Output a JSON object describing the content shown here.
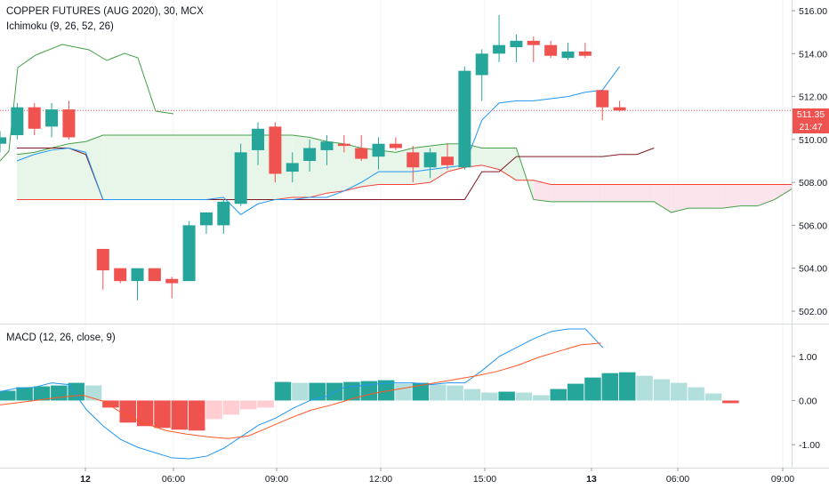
{
  "header": {
    "symbol_title": "COPPER FUTURES (AUG 2020), 30, MCX",
    "ichimoku_label": "Ichimoku (9, 26, 52, 26)",
    "macd_label": "MACD (12, 26, close, 9)"
  },
  "price_tag": {
    "price": "511.35",
    "countdown": "21:47"
  },
  "colors": {
    "up": "#26a69a",
    "down": "#ef5350",
    "conversion": "#2196f3",
    "base": "#801922",
    "lagging": "#43a047",
    "span_a": "#f44336",
    "cloud_bull": "#e8f5e9",
    "cloud_bear": "#fce4ec",
    "macd_line": "#2196f3",
    "signal_line": "#ff5722",
    "hist_up_strong": "#26a69a",
    "hist_up_weak": "#b2dfdb",
    "hist_down_strong": "#ef5350",
    "hist_down_weak": "#ffcdd2"
  },
  "chart_data": [
    {
      "type": "candlestick",
      "title": "COPPER FUTURES (AUG 2020), 30, MCX",
      "indicator": "Ichimoku (9, 26, 52, 26)",
      "ylim": [
        501.5,
        516.5
      ],
      "y_ticks": [
        "516.00",
        "514.00",
        "512.00",
        "510.00",
        "508.00",
        "506.00",
        "504.00",
        "502.00"
      ],
      "x_ticks": [
        "12",
        "06:00",
        "09:00",
        "12:00",
        "15:00",
        "13",
        "06:00",
        "09:00"
      ],
      "last_price": 511.35,
      "candles": [
        {
          "o": 509.8,
          "h": 510.4,
          "l": 509.4,
          "c": 510.1
        },
        {
          "o": 510.2,
          "h": 511.7,
          "l": 510.0,
          "c": 511.5
        },
        {
          "o": 511.5,
          "h": 511.7,
          "l": 510.2,
          "c": 510.5
        },
        {
          "o": 510.6,
          "h": 511.7,
          "l": 510.1,
          "c": 511.4
        },
        {
          "o": 511.4,
          "h": 511.8,
          "l": 510.0,
          "c": 510.1
        },
        {
          "o": 504.9,
          "h": 504.9,
          "l": 503.0,
          "c": 503.9
        },
        {
          "o": 504.0,
          "h": 504.0,
          "l": 503.3,
          "c": 503.4
        },
        {
          "o": 503.4,
          "h": 504.0,
          "l": 502.5,
          "c": 504.0
        },
        {
          "o": 504.0,
          "h": 504.0,
          "l": 503.4,
          "c": 503.4
        },
        {
          "o": 503.5,
          "h": 503.6,
          "l": 502.6,
          "c": 503.3
        },
        {
          "o": 503.4,
          "h": 506.2,
          "l": 503.4,
          "c": 506.0
        },
        {
          "o": 506.0,
          "h": 506.6,
          "l": 505.6,
          "c": 506.6
        },
        {
          "o": 506.0,
          "h": 507.2,
          "l": 505.6,
          "c": 507.1
        },
        {
          "o": 507.0,
          "h": 509.8,
          "l": 506.9,
          "c": 509.4
        },
        {
          "o": 509.5,
          "h": 510.8,
          "l": 508.8,
          "c": 510.5
        },
        {
          "o": 510.6,
          "h": 510.8,
          "l": 508.0,
          "c": 508.4
        },
        {
          "o": 508.5,
          "h": 509.4,
          "l": 508.0,
          "c": 508.9
        },
        {
          "o": 509.0,
          "h": 510.0,
          "l": 508.5,
          "c": 509.6
        },
        {
          "o": 509.5,
          "h": 510.2,
          "l": 508.8,
          "c": 509.9
        },
        {
          "o": 509.8,
          "h": 510.2,
          "l": 509.4,
          "c": 509.7
        },
        {
          "o": 509.6,
          "h": 510.2,
          "l": 509.0,
          "c": 509.1
        },
        {
          "o": 509.2,
          "h": 510.1,
          "l": 508.6,
          "c": 509.8
        },
        {
          "o": 509.8,
          "h": 510.1,
          "l": 509.5,
          "c": 509.6
        },
        {
          "o": 509.4,
          "h": 509.7,
          "l": 508.0,
          "c": 508.7
        },
        {
          "o": 508.7,
          "h": 509.6,
          "l": 508.2,
          "c": 509.4
        },
        {
          "o": 509.2,
          "h": 509.8,
          "l": 508.6,
          "c": 508.8
        },
        {
          "o": 508.7,
          "h": 513.4,
          "l": 508.6,
          "c": 513.2
        },
        {
          "o": 513.0,
          "h": 514.2,
          "l": 511.8,
          "c": 514.0
        },
        {
          "o": 514.0,
          "h": 515.8,
          "l": 513.6,
          "c": 514.4
        },
        {
          "o": 514.3,
          "h": 514.9,
          "l": 513.6,
          "c": 514.6
        },
        {
          "o": 514.6,
          "h": 514.8,
          "l": 513.6,
          "c": 514.4
        },
        {
          "o": 514.4,
          "h": 514.6,
          "l": 513.8,
          "c": 513.9
        },
        {
          "o": 513.8,
          "h": 514.5,
          "l": 513.7,
          "c": 514.1
        },
        {
          "o": 514.1,
          "h": 514.5,
          "l": 513.8,
          "c": 513.9
        },
        {
          "o": 512.3,
          "h": 512.3,
          "l": 510.9,
          "c": 511.5
        },
        {
          "o": 511.5,
          "h": 511.8,
          "l": 511.3,
          "c": 511.35
        }
      ],
      "conversion_line": [
        509.0,
        509.3,
        509.5,
        509.6,
        509.4,
        507.2,
        507.2,
        507.2,
        507.2,
        507.2,
        507.2,
        507.2,
        507.3,
        506.5,
        507.0,
        507.2,
        507.2,
        507.3,
        507.3,
        507.6,
        508.0,
        508.5,
        508.5,
        508.5,
        508.6,
        508.7,
        508.8,
        510.9,
        511.7,
        511.8,
        511.8,
        511.9,
        512.0,
        512.2,
        512.3,
        513.4
      ],
      "base_line": [
        509.6,
        509.6,
        509.6,
        509.6,
        509.3,
        507.2,
        507.2,
        507.2,
        507.2,
        507.2,
        507.2,
        507.2,
        507.2,
        507.2,
        507.2,
        507.2,
        507.2,
        507.2,
        507.2,
        507.2,
        507.2,
        507.2,
        507.2,
        507.2,
        507.2,
        507.2,
        507.2,
        508.5,
        508.5,
        509.2,
        509.2,
        509.2,
        509.2,
        509.2,
        509.2,
        509.3,
        509.3,
        509.6
      ],
      "lagging_span": [
        509.4,
        513.1,
        514.0,
        514.3,
        514.6,
        514.4,
        513.8,
        514.0,
        513.6,
        511.4,
        511.3
      ],
      "span_a": [
        507.2,
        507.2,
        507.2,
        507.2,
        507.2,
        507.2,
        507.2,
        507.2,
        507.2,
        507.2,
        507.2,
        507.2,
        507.2,
        507.2,
        507.2,
        507.2,
        507.3,
        507.3,
        507.5,
        507.6,
        507.8,
        507.9,
        507.9,
        507.9,
        508.0,
        508.5,
        508.7,
        508.8,
        508.6,
        508.1,
        508.1,
        507.9,
        507.9,
        507.9,
        507.9,
        507.9,
        507.9,
        507.9,
        507.9,
        507.9,
        507.9,
        507.9,
        507.9,
        507.9,
        507.9,
        507.9
      ],
      "span_b": [
        509.3,
        509.4,
        509.6,
        509.8,
        509.9,
        510.2,
        510.2,
        510.2,
        510.2,
        510.2,
        510.2,
        510.2,
        510.2,
        510.2,
        510.2,
        510.2,
        510.2,
        510.1,
        509.9,
        509.8,
        509.6,
        509.5,
        509.4,
        509.6,
        509.7,
        509.8,
        509.8,
        509.6,
        509.6,
        509.6,
        507.2,
        507.1,
        507.1,
        507.1,
        507.1,
        507.1,
        507.1,
        507.1,
        506.6,
        506.8,
        506.8,
        506.8,
        506.9,
        506.9,
        507.2,
        507.7
      ]
    },
    {
      "type": "bar",
      "title": "MACD (12, 26, close, 9)",
      "ylim": [
        -1.48,
        1.68
      ],
      "y_ticks": [
        "1.00",
        "0.00",
        "-1.00"
      ],
      "histogram": [
        0.22,
        0.3,
        0.32,
        0.34,
        0.4,
        0.34,
        -0.16,
        -0.5,
        -0.58,
        -0.62,
        -0.66,
        -0.68,
        -0.42,
        -0.32,
        -0.2,
        -0.16,
        0.42,
        0.4,
        0.4,
        0.4,
        0.42,
        0.44,
        0.46,
        0.38,
        0.4,
        0.36,
        0.34,
        0.26,
        0.18,
        0.2,
        0.18,
        0.12,
        0.26,
        0.38,
        0.52,
        0.62,
        0.64,
        0.56,
        0.48,
        0.4,
        0.3,
        0.16,
        -0.06
      ],
      "macd_line": [
        0.2,
        0.28,
        0.3,
        0.4,
        0.36,
        -0.2,
        -0.58,
        -0.88,
        -1.06,
        -1.18,
        -1.3,
        -1.32,
        -1.26,
        -1.08,
        -0.82,
        -0.56,
        -0.4,
        -0.18,
        0.0,
        0.1,
        0.3,
        0.34,
        0.38,
        0.4,
        0.4,
        0.36,
        0.4,
        0.4,
        0.68,
        1.0,
        1.2,
        1.4,
        1.56,
        1.62,
        1.62,
        1.2
      ],
      "signal_line": [
        -0.1,
        -0.04,
        0.02,
        0.08,
        0.12,
        -0.02,
        -0.32,
        -0.52,
        -0.68,
        -0.76,
        -0.82,
        -0.86,
        -0.8,
        -0.6,
        -0.4,
        -0.22,
        -0.1,
        0.04,
        0.16,
        0.24,
        0.32,
        0.4,
        0.48,
        0.56,
        0.66,
        0.8,
        0.98,
        1.12,
        1.26,
        1.3
      ]
    }
  ]
}
